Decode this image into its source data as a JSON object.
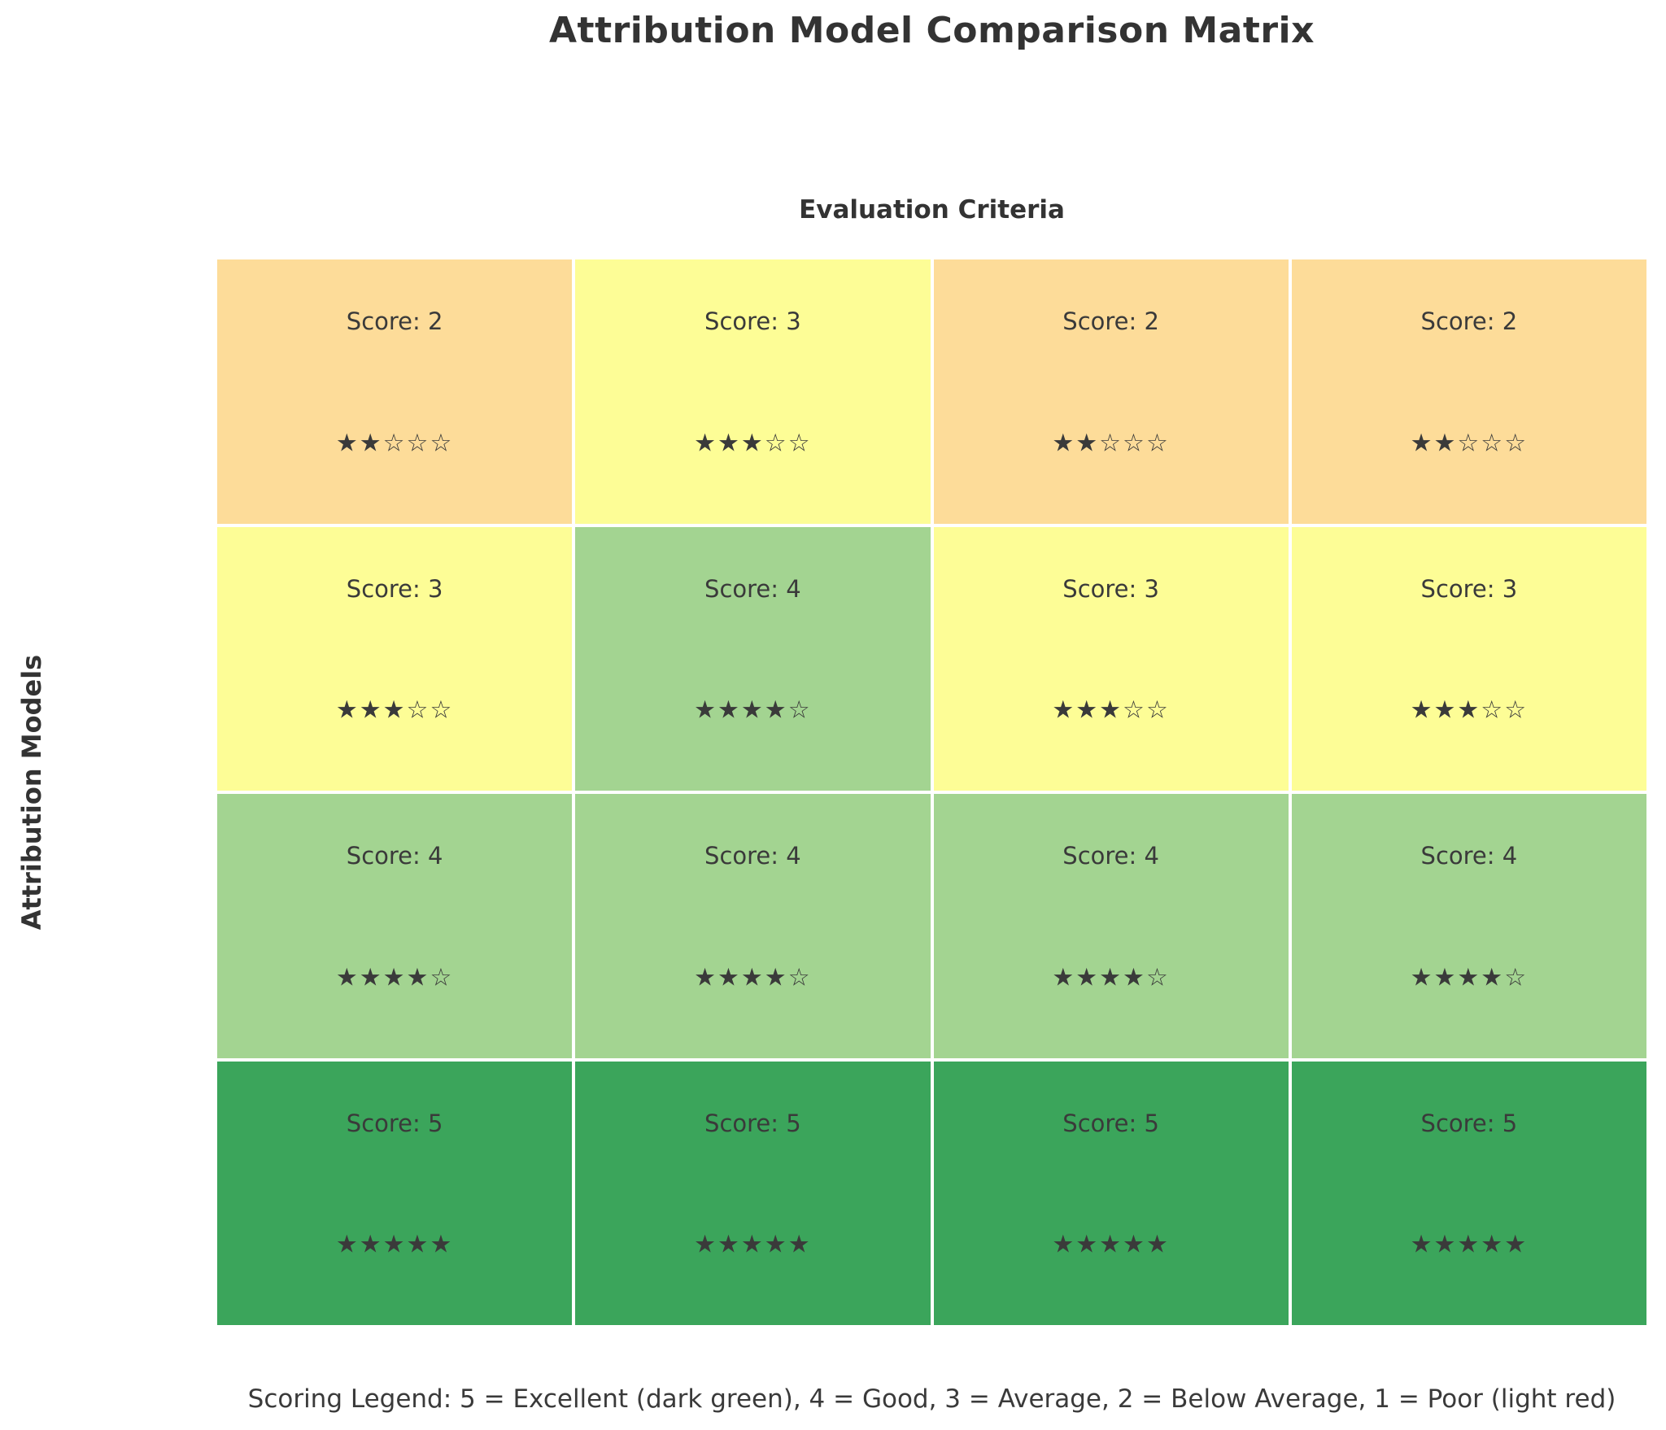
{
  "title": "Attribution Model Comparison Matrix",
  "axes": {
    "x_label": "Evaluation Criteria",
    "y_label": "Attribution Models"
  },
  "legend_note": "Scoring Legend: 5 = Excellent (dark green), 4 = Good, 3 = Average, 2 = Below Average, 1 = Poor (light red)",
  "colors": {
    "background": "#FFFFFF",
    "text": "#3A3A3A",
    "score_2": "#FDDC99",
    "score_3": "#FDFD96",
    "score_4": "#A3D491",
    "score_5": "#3BA55B"
  },
  "chart_data": {
    "type": "heatmap",
    "title": "Attribution Model Comparison Matrix",
    "xlabel": "Evaluation Criteria",
    "ylabel": "Attribution Models",
    "grid_shape": {
      "rows": 4,
      "cols": 4
    },
    "values": [
      [
        2,
        3,
        2,
        2
      ],
      [
        3,
        4,
        3,
        3
      ],
      [
        4,
        4,
        4,
        4
      ],
      [
        5,
        5,
        5,
        5
      ]
    ],
    "score_colors": {
      "2": "#FDDC99",
      "3": "#FDFD96",
      "4": "#A3D491",
      "5": "#3BA55B"
    },
    "score_stars": {
      "2": "★★☆☆☆",
      "3": "★★★☆☆",
      "4": "★★★★☆",
      "5": "★★★★★"
    },
    "legend": "Scoring Legend: 5 = Excellent (dark green), 4 = Good, 3 = Average, 2 = Below Average, 1 = Poor (light red)",
    "cells": [
      {
        "row": 0,
        "col": 0,
        "score": 2,
        "label": "Score: 2",
        "stars": "★★☆☆☆",
        "color": "#FDDC99"
      },
      {
        "row": 0,
        "col": 1,
        "score": 3,
        "label": "Score: 3",
        "stars": "★★★☆☆",
        "color": "#FDFD96"
      },
      {
        "row": 0,
        "col": 2,
        "score": 2,
        "label": "Score: 2",
        "stars": "★★☆☆☆",
        "color": "#FDDC99"
      },
      {
        "row": 0,
        "col": 3,
        "score": 2,
        "label": "Score: 2",
        "stars": "★★☆☆☆",
        "color": "#FDDC99"
      },
      {
        "row": 1,
        "col": 0,
        "score": 3,
        "label": "Score: 3",
        "stars": "★★★☆☆",
        "color": "#FDFD96"
      },
      {
        "row": 1,
        "col": 1,
        "score": 4,
        "label": "Score: 4",
        "stars": "★★★★☆",
        "color": "#A3D491"
      },
      {
        "row": 1,
        "col": 2,
        "score": 3,
        "label": "Score: 3",
        "stars": "★★★☆☆",
        "color": "#FDFD96"
      },
      {
        "row": 1,
        "col": 3,
        "score": 3,
        "label": "Score: 3",
        "stars": "★★★☆☆",
        "color": "#FDFD96"
      },
      {
        "row": 2,
        "col": 0,
        "score": 4,
        "label": "Score: 4",
        "stars": "★★★★☆",
        "color": "#A3D491"
      },
      {
        "row": 2,
        "col": 1,
        "score": 4,
        "label": "Score: 4",
        "stars": "★★★★☆",
        "color": "#A3D491"
      },
      {
        "row": 2,
        "col": 2,
        "score": 4,
        "label": "Score: 4",
        "stars": "★★★★☆",
        "color": "#A3D491"
      },
      {
        "row": 2,
        "col": 3,
        "score": 4,
        "label": "Score: 4",
        "stars": "★★★★☆",
        "color": "#A3D491"
      },
      {
        "row": 3,
        "col": 0,
        "score": 5,
        "label": "Score: 5",
        "stars": "★★★★★",
        "color": "#3BA55B"
      },
      {
        "row": 3,
        "col": 1,
        "score": 5,
        "label": "Score: 5",
        "stars": "★★★★★",
        "color": "#3BA55B"
      },
      {
        "row": 3,
        "col": 2,
        "score": 5,
        "label": "Score: 5",
        "stars": "★★★★★",
        "color": "#3BA55B"
      },
      {
        "row": 3,
        "col": 3,
        "score": 5,
        "label": "Score: 5",
        "stars": "★★★★★",
        "color": "#3BA55B"
      }
    ]
  }
}
